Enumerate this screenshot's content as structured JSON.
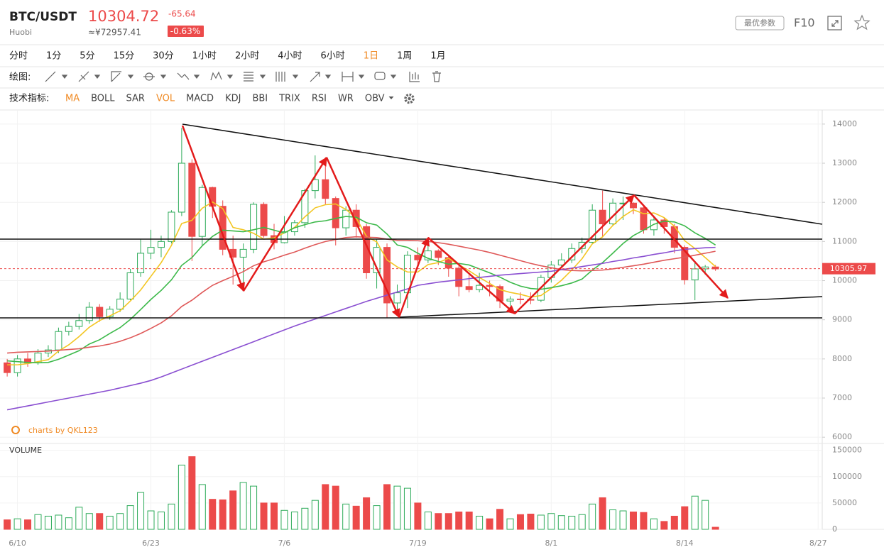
{
  "header": {
    "pair": "BTC/USDT",
    "exchange": "Huobi",
    "price": "10304.72",
    "cny": "≈¥72957.41",
    "change": "-65.64",
    "change_pct": "-0.63%",
    "param_button": "最优参数",
    "f10": "F10"
  },
  "timeframes": {
    "items": [
      "分时",
      "1分",
      "5分",
      "15分",
      "30分",
      "1小时",
      "2小时",
      "4小时",
      "6小时",
      "1日",
      "1周",
      "1月"
    ],
    "active_index": 9
  },
  "drawing": {
    "label": "绘图:"
  },
  "indicators": {
    "label": "技术指标:",
    "items": [
      "MA",
      "BOLL",
      "SAR",
      "VOL",
      "MACD",
      "KDJ",
      "BBI",
      "TRIX",
      "RSI",
      "WR",
      "OBV"
    ],
    "active_indices": [
      0,
      3
    ]
  },
  "chart_data": {
    "type": "candlestick",
    "watermark": "charts by QKL123",
    "volume_label": "VOLUME",
    "up_color": "#2eab5a",
    "down_color": "#ec4a4a",
    "x": [
      0,
      1,
      2,
      3,
      4,
      5,
      6,
      7,
      8,
      9,
      10,
      11,
      12,
      13,
      14,
      15,
      16,
      17,
      18,
      19,
      20,
      21,
      22,
      23,
      24,
      25,
      26,
      27,
      28,
      29,
      30,
      31,
      32,
      33,
      34,
      35,
      36,
      37,
      38,
      39,
      40,
      41,
      42,
      43,
      44,
      45,
      46,
      47,
      48,
      49,
      50,
      51,
      52,
      53,
      54,
      55,
      56,
      57,
      58,
      59,
      60,
      61,
      62,
      63,
      64,
      65,
      66,
      67,
      68,
      69
    ],
    "open": [
      7900,
      7650,
      8000,
      7900,
      8150,
      8230,
      8700,
      8830,
      8980,
      9320,
      9080,
      9270,
      9530,
      10200,
      10700,
      10850,
      11000,
      11750,
      13000,
      11130,
      12380,
      11900,
      10800,
      10600,
      10800,
      11950,
      11150,
      10970,
      11250,
      11480,
      12300,
      12580,
      12100,
      11350,
      11800,
      11380,
      10200,
      10850,
      9430,
      9690,
      10650,
      10530,
      10760,
      10590,
      10320,
      9850,
      9770,
      9880,
      9850,
      9480,
      9530,
      9520,
      9500,
      10080,
      10400,
      10530,
      10820,
      10980,
      11800,
      11450,
      11980,
      11980,
      11860,
      11300,
      11550,
      11380,
      10850,
      10020,
      10300,
      10350
    ],
    "high": [
      8000,
      8100,
      8150,
      8250,
      8350,
      8800,
      8950,
      9150,
      9450,
      9400,
      9350,
      9700,
      10300,
      11050,
      11300,
      11150,
      11800,
      13900,
      13100,
      12450,
      12400,
      12050,
      11150,
      10950,
      12000,
      12000,
      11450,
      11650,
      11550,
      12350,
      13200,
      13150,
      12150,
      11900,
      11950,
      11450,
      11050,
      10950,
      9900,
      10750,
      10850,
      11000,
      10800,
      10650,
      10400,
      10150,
      10200,
      10000,
      9900,
      9600,
      9700,
      9700,
      10150,
      10500,
      10700,
      10950,
      11100,
      11950,
      12300,
      12100,
      12150,
      12000,
      11900,
      11600,
      11600,
      11450,
      10900,
      10450,
      10400,
      10400
    ],
    "low": [
      7550,
      7550,
      7800,
      7850,
      8050,
      8150,
      8600,
      8750,
      8900,
      8950,
      9000,
      9200,
      9500,
      10100,
      10550,
      10600,
      10950,
      11650,
      10500,
      10900,
      11600,
      10650,
      9900,
      9800,
      10700,
      11100,
      10800,
      10950,
      11150,
      11350,
      12100,
      11950,
      10900,
      11150,
      11100,
      10050,
      9800,
      9050,
      9100,
      9300,
      10350,
      10450,
      10400,
      10100,
      9600,
      9700,
      9700,
      9600,
      9300,
      9350,
      9400,
      9400,
      9450,
      9950,
      10350,
      10450,
      10700,
      10950,
      11100,
      11400,
      11550,
      11700,
      11200,
      11150,
      11200,
      10700,
      9900,
      9500,
      10150,
      10250
    ],
    "close": [
      7650,
      8000,
      7900,
      8150,
      8230,
      8700,
      8830,
      8980,
      9320,
      9080,
      9270,
      9530,
      10200,
      10700,
      10850,
      11000,
      11750,
      13000,
      11130,
      12380,
      11900,
      10800,
      10600,
      10800,
      11950,
      11150,
      10970,
      11250,
      11480,
      12300,
      12580,
      12100,
      11350,
      11800,
      11380,
      10200,
      10850,
      9430,
      9690,
      10650,
      10530,
      10760,
      10590,
      10320,
      9850,
      9770,
      9880,
      9850,
      9480,
      9530,
      9520,
      9500,
      10080,
      10400,
      10530,
      10820,
      10980,
      11800,
      11450,
      11980,
      11980,
      11860,
      11300,
      11550,
      11380,
      10850,
      10020,
      10300,
      10350,
      10300
    ],
    "volume": [
      18000,
      20000,
      18000,
      28000,
      25000,
      27000,
      22000,
      42000,
      30000,
      30000,
      25000,
      30000,
      45000,
      70000,
      35000,
      33000,
      48000,
      122000,
      138000,
      85000,
      57000,
      56000,
      73000,
      89000,
      82000,
      50000,
      50000,
      36000,
      33000,
      40000,
      55000,
      85000,
      82000,
      48000,
      44000,
      60000,
      45000,
      85000,
      82000,
      78000,
      50000,
      33000,
      30000,
      30000,
      33000,
      33000,
      25000,
      20000,
      38000,
      20000,
      28000,
      29000,
      27000,
      30000,
      26000,
      25000,
      28000,
      48000,
      60000,
      37000,
      35000,
      33000,
      32000,
      20000,
      15000,
      25000,
      43000,
      63000,
      55000,
      4000
    ],
    "ma_series": [
      {
        "color": "#f3c623",
        "values": [
          7850,
          7850,
          7880,
          7930,
          7980,
          8200,
          8360,
          8570,
          8810,
          8980,
          9100,
          9230,
          9480,
          9760,
          10110,
          10460,
          10900,
          11460,
          11540,
          11850,
          12010,
          11840,
          11360,
          11300,
          11210,
          11060,
          11090,
          11220,
          11360,
          11630,
          11860,
          11940,
          11960,
          11820,
          11600,
          11130,
          10990,
          10530,
          10350,
          10220,
          10220,
          10410,
          10460,
          10570,
          10410,
          10250,
          10080,
          9930,
          9770,
          9700,
          9650,
          9580,
          9620,
          9800,
          10010,
          10270,
          10560,
          10940,
          11120,
          11410,
          11640,
          11810,
          11710,
          11730,
          11610,
          11390,
          11020,
          10820,
          10590,
          10360
        ]
      },
      {
        "color": "#3cb94a",
        "values": [
          7950,
          7930,
          7910,
          7900,
          7910,
          7990,
          8100,
          8210,
          8380,
          8490,
          8650,
          8800,
          9010,
          9260,
          9520,
          9750,
          10020,
          10390,
          10590,
          10890,
          11130,
          11290,
          11270,
          11250,
          11300,
          11360,
          11290,
          11220,
          11350,
          11430,
          11500,
          11530,
          11590,
          11640,
          11620,
          11480,
          11420,
          11190,
          10910,
          10850,
          10700,
          10570,
          10490,
          10420,
          10440,
          10400,
          10300,
          10200,
          10090,
          9960,
          9860,
          9800,
          9780,
          9820,
          9870,
          9940,
          10040,
          10270,
          10460,
          10700,
          10950,
          11150,
          11290,
          11440,
          11520,
          11500,
          11400,
          11220,
          11080,
          10910
        ]
      },
      {
        "color": "#df5858",
        "values": [
          8150,
          8170,
          8180,
          8190,
          8200,
          8220,
          8240,
          8260,
          8300,
          8330,
          8380,
          8450,
          8540,
          8650,
          8780,
          8920,
          9100,
          9340,
          9500,
          9700,
          9880,
          10000,
          10110,
          10230,
          10380,
          10480,
          10560,
          10650,
          10730,
          10830,
          10920,
          11000,
          11050,
          11100,
          11120,
          11110,
          11100,
          11060,
          11030,
          11030,
          11020,
          11000,
          10970,
          10930,
          10880,
          10830,
          10780,
          10720,
          10650,
          10580,
          10510,
          10440,
          10380,
          10330,
          10280,
          10260,
          10250,
          10260,
          10270,
          10300,
          10340,
          10380,
          10420,
          10470,
          10520,
          10560,
          10600,
          10650,
          10700,
          10750
        ]
      },
      {
        "color": "#8a4fd1",
        "values": [
          6700,
          6750,
          6800,
          6850,
          6900,
          6950,
          7000,
          7050,
          7100,
          7150,
          7200,
          7260,
          7320,
          7380,
          7450,
          7540,
          7640,
          7740,
          7840,
          7940,
          8040,
          8140,
          8240,
          8340,
          8440,
          8540,
          8640,
          8740,
          8840,
          8930,
          9020,
          9110,
          9200,
          9290,
          9380,
          9470,
          9550,
          9630,
          9710,
          9790,
          9880,
          9920,
          9960,
          9990,
          10020,
          10050,
          10080,
          10110,
          10140,
          10160,
          10180,
          10200,
          10220,
          10240,
          10280,
          10320,
          10360,
          10400,
          10440,
          10490,
          10530,
          10580,
          10620,
          10670,
          10710,
          10760,
          10800,
          10820,
          10840,
          10850
        ]
      }
    ],
    "price_line": 10305.97,
    "xlim": [
      -0.7,
      79.4
    ],
    "xticks": [
      {
        "value": 1,
        "label": "6/10"
      },
      {
        "value": 14,
        "label": "6/23"
      },
      {
        "value": 27,
        "label": "7/6"
      },
      {
        "value": 40,
        "label": "7/19"
      },
      {
        "value": 53,
        "label": "8/1"
      },
      {
        "value": 66,
        "label": "8/14"
      },
      {
        "value": 79,
        "label": "8/27"
      }
    ],
    "ylim": [
      5840,
      14360
    ],
    "yticks": [
      6000,
      7000,
      8000,
      9000,
      10000,
      11000,
      12000,
      13000,
      14000
    ],
    "volume_ylim": [
      0,
      163000
    ],
    "volume_yticks": [
      0,
      50000,
      100000,
      150000
    ],
    "grid": true
  }
}
